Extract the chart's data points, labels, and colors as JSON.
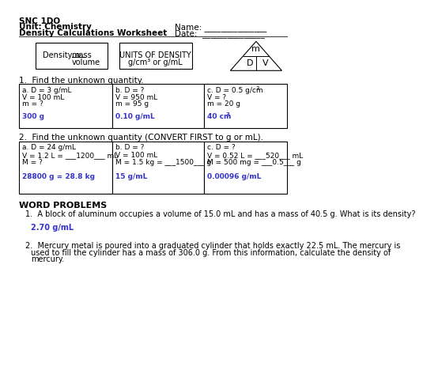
{
  "title_line1": "SNC 1DO",
  "title_line2": "Unit: Chemistry",
  "title_line3": "Density Calculations Worksheet",
  "name_label": "Name: _______________",
  "date_label": "Date:  _______________",
  "q1_header": "1.  Find the unknown quantity.",
  "q1a": [
    "a. D = 3 g/mL",
    "V = 100 mL",
    "m = ?",
    "300 g"
  ],
  "q1b": [
    "b. D = ?",
    "V = 950 mL",
    "m = 95 g",
    "0.10 g/mL"
  ],
  "q1c_lines": [
    "c. D = 0.5 g/cm",
    "V = ?",
    "m = 20 g"
  ],
  "q1c_answer": "40 cm",
  "q2_header": "2.  Find the unknown quantity (CONVERT FIRST to g or mL).",
  "q2a": [
    "a. D = 24 g/mL",
    "V = 1.2 L = ___1200___ mL",
    "M = ?",
    "28800 g = 28.8 kg"
  ],
  "q2b": [
    "b. D = ?",
    "V = 100 mL",
    "M = 1.5 kg = ___1500___ g",
    "15 g/mL"
  ],
  "q2c": [
    "c. D = ?",
    "V = 0.52 L = ___520___ mL",
    "M = 500 mg = ___0.5___ g",
    "0.00096 g/mL"
  ],
  "word_problems_header": "WORD PROBLEMS",
  "wp1": "1.  A block of aluminum occupies a volume of 15.0 mL and has a mass of 40.5 g. What is its density?",
  "wp1_answer": "2.70 g/mL",
  "wp2_line1": "2.  Mercury metal is poured into a graduated cylinder that holds exactly 22.5 mL. The mercury is",
  "wp2_line2": "used to fill the cylinder has a mass of 306.0 g. From this information, calculate the density of",
  "wp2_line3": "mercury.",
  "answer_color": "#3333cc",
  "bg_color": "#ffffff",
  "text_color": "#000000"
}
